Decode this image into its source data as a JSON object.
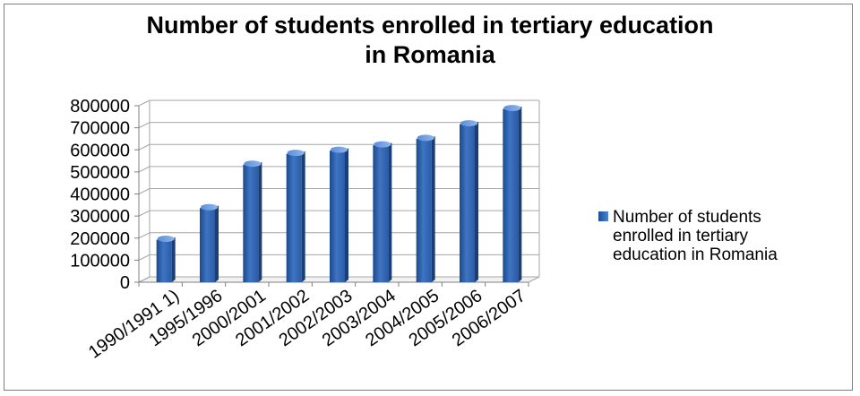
{
  "chart_data": {
    "type": "bar",
    "title_lines": [
      "Number of students enrolled in tertiary education",
      "in Romania"
    ],
    "categories": [
      "1990/1991 1)",
      "1995/1996",
      "2000/2001",
      "2001/2002",
      "2002/2003",
      "2003/2004",
      "2004/2005",
      "2005/2006",
      "2006/2007"
    ],
    "series": [
      {
        "name_lines": [
          "Number of students",
          "enrolled in tertiary",
          "education in Romania"
        ],
        "color": "#3a6fbf",
        "values": [
          192810,
          336141,
          533152,
          582221,
          596297,
          620785,
          650335,
          716464,
          785506
        ]
      }
    ],
    "yticks": [
      "0",
      "100000",
      "200000",
      "300000",
      "400000",
      "500000",
      "600000",
      "700000",
      "800000"
    ],
    "ylim": [
      0,
      800000
    ],
    "grid": true,
    "legend": "right"
  }
}
